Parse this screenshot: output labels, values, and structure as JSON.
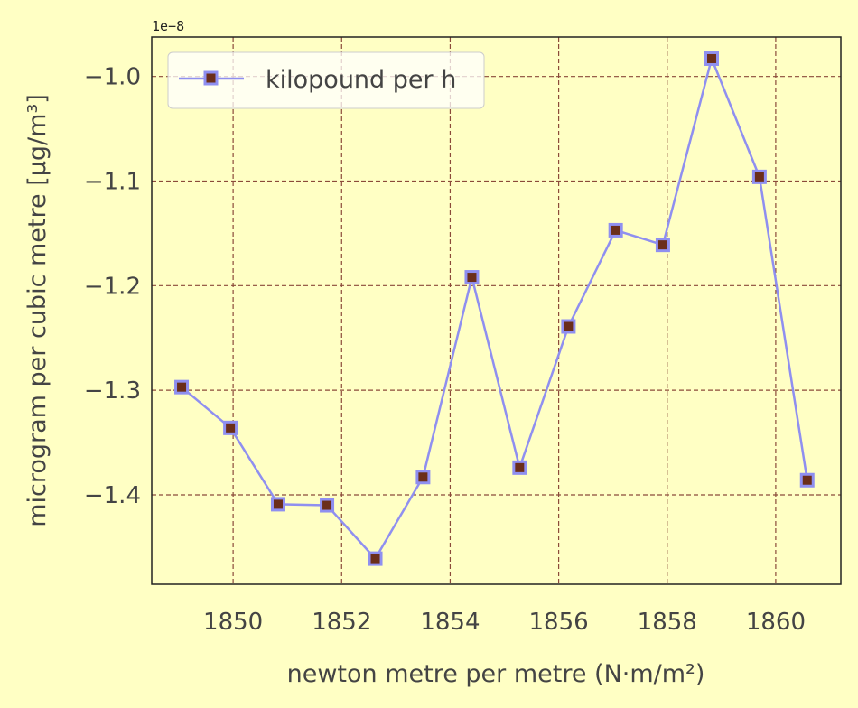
{
  "chart_data": {
    "type": "line",
    "xlabel": "newton metre per metre (N·m/m²)",
    "ylabel": "microgram per cubic metre [µg/m³]",
    "y_offset_text": "1e−8",
    "xlim": [
      1848.5,
      1861.2
    ],
    "ylim": [
      -1.4855,
      -0.9623
    ],
    "xticks": [
      1850,
      1852,
      1854,
      1856,
      1858,
      1860
    ],
    "xtick_labels": [
      "1850",
      "1852",
      "1854",
      "1856",
      "1858",
      "1860"
    ],
    "yticks": [
      -1.4,
      -1.3,
      -1.2,
      -1.1,
      -1.0
    ],
    "ytick_labels": [
      "−1.4",
      "−1.3",
      "−1.2",
      "−1.1",
      "−1.0"
    ],
    "grid": true,
    "legend_position": "top-left",
    "series": [
      {
        "name": "kilopound per h",
        "color": "#8f8ff0",
        "marker": "square",
        "marker_face": "#6b2e1a",
        "x": [
          1849.05,
          1849.95,
          1850.83,
          1851.73,
          1852.62,
          1853.5,
          1854.4,
          1855.28,
          1856.18,
          1857.05,
          1857.92,
          1858.82,
          1859.7,
          1860.58
        ],
        "y": [
          -1.297,
          -1.336,
          -1.409,
          -1.41,
          -1.461,
          -1.383,
          -1.192,
          -1.374,
          -1.239,
          -1.147,
          -1.161,
          -0.983,
          -1.096,
          -1.386
        ]
      }
    ]
  }
}
